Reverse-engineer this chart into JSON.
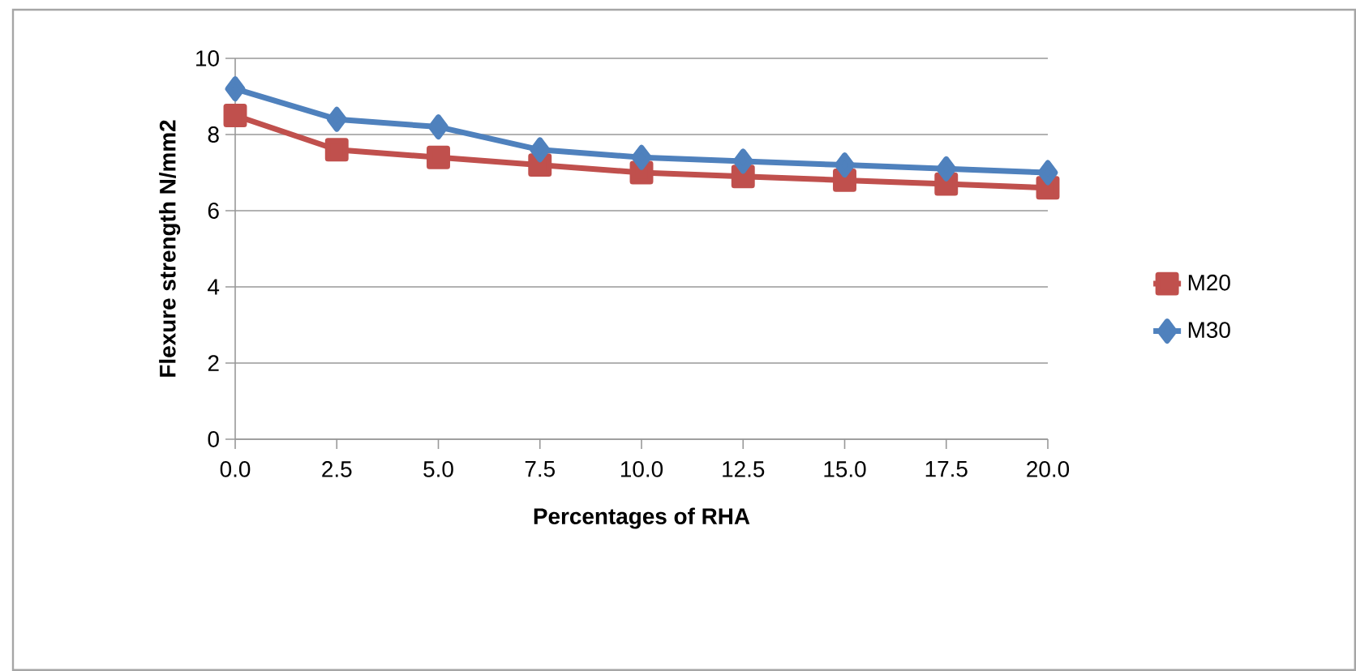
{
  "chart_data": {
    "type": "line",
    "xlabel": "Percentages of RHA",
    "ylabel": "Flexure strength N/mm2",
    "categories": [
      "0.0",
      "2.5",
      "5.0",
      "7.5",
      "10.0",
      "12.5",
      "15.0",
      "17.5",
      "20.0"
    ],
    "series": [
      {
        "name": "M20",
        "color": "#c0504d",
        "marker": "square",
        "values": [
          8.5,
          7.6,
          7.4,
          7.2,
          7.0,
          6.9,
          6.8,
          6.7,
          6.6
        ]
      },
      {
        "name": "M30",
        "color": "#4f81bd",
        "marker": "diamond",
        "values": [
          9.2,
          8.4,
          8.2,
          7.6,
          7.4,
          7.3,
          7.2,
          7.1,
          7.0
        ]
      }
    ],
    "ylim": [
      0,
      10
    ],
    "yticks": [
      0,
      2,
      4,
      6,
      8,
      10
    ],
    "grid": "y",
    "legend": "right"
  }
}
